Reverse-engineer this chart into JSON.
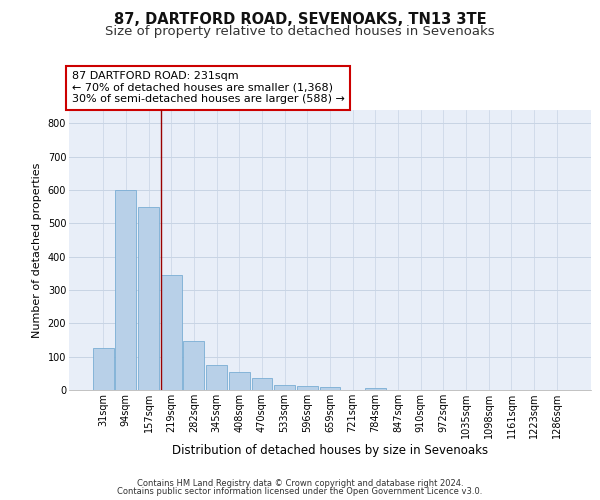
{
  "title1": "87, DARTFORD ROAD, SEVENOAKS, TN13 3TE",
  "title2": "Size of property relative to detached houses in Sevenoaks",
  "xlabel": "Distribution of detached houses by size in Sevenoaks",
  "ylabel": "Number of detached properties",
  "categories": [
    "31sqm",
    "94sqm",
    "157sqm",
    "219sqm",
    "282sqm",
    "345sqm",
    "408sqm",
    "470sqm",
    "533sqm",
    "596sqm",
    "659sqm",
    "721sqm",
    "784sqm",
    "847sqm",
    "910sqm",
    "972sqm",
    "1035sqm",
    "1098sqm",
    "1161sqm",
    "1223sqm",
    "1286sqm"
  ],
  "values": [
    125,
    600,
    550,
    345,
    148,
    75,
    55,
    35,
    15,
    12,
    10,
    0,
    5,
    0,
    0,
    0,
    0,
    0,
    0,
    0,
    0
  ],
  "bar_color": "#b8d0e8",
  "bar_edge_color": "#7aadd4",
  "grid_color": "#c8d4e4",
  "background_color": "#e8eef8",
  "annotation_text": "87 DARTFORD ROAD: 231sqm\n← 70% of detached houses are smaller (1,368)\n30% of semi-detached houses are larger (588) →",
  "vline_x": 2.55,
  "vline_color": "#990000",
  "ylim": [
    0,
    840
  ],
  "yticks": [
    0,
    100,
    200,
    300,
    400,
    500,
    600,
    700,
    800
  ],
  "footer1": "Contains HM Land Registry data © Crown copyright and database right 2024.",
  "footer2": "Contains public sector information licensed under the Open Government Licence v3.0.",
  "title1_fontsize": 10.5,
  "title2_fontsize": 9.5,
  "xlabel_fontsize": 8.5,
  "ylabel_fontsize": 8,
  "tick_fontsize": 7,
  "annotation_fontsize": 8,
  "footer_fontsize": 6
}
